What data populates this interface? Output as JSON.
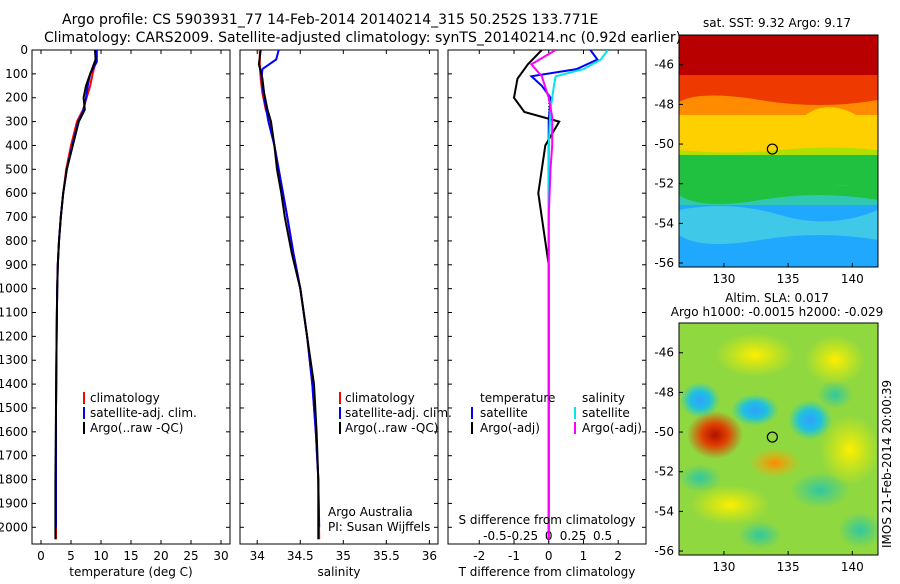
{
  "header": {
    "line1": "Argo profile: CS 5903931_77 14-Feb-2014 20140214_315 50.252S 133.771E",
    "line2": "Climatology: CARS2009. Satellite-adjusted climatology: synTS_20140214.nc (0.92d earlier)"
  },
  "side_text": "IMOS 21-Feb-2014 20:00:39",
  "colors": {
    "climatology": "#ff0000",
    "satellite": "#0000ff",
    "argo": "#000000",
    "s_satellite": "#00e5ee",
    "s_argo": "#ff00ff",
    "t_satellite": "#0000ff"
  },
  "chart_data": [
    {
      "type": "line",
      "id": "temperature",
      "xlabel": "temperature (deg C)",
      "ylabel": "",
      "xlim": [
        -1.5,
        31.5
      ],
      "ylim": [
        2070,
        0
      ],
      "xticks": [
        0,
        5,
        10,
        15,
        20,
        25,
        30
      ],
      "xtick_labels": [
        "0",
        "5",
        "10",
        "15",
        "20",
        "25",
        "30"
      ],
      "yticks": [
        0,
        100,
        200,
        300,
        400,
        500,
        600,
        700,
        800,
        900,
        1000,
        1100,
        1200,
        1300,
        1400,
        1500,
        1600,
        1700,
        1800,
        1900,
        2000
      ],
      "ytick_labels": [
        "0",
        "100",
        "200",
        "300",
        "400",
        "500",
        "600",
        "700",
        "800",
        "900",
        "1000",
        "1100",
        "1200",
        "1300",
        "1400",
        "1500",
        "1600",
        "1700",
        "1800",
        "1900",
        "2000"
      ],
      "legend": [
        "climatology",
        "satellite-adj. clim.",
        "Argo(..raw -QC)"
      ],
      "legend_placement": "lower-center",
      "series": [
        {
          "name": "climatology",
          "color": "#ff0000",
          "x": [
            9.2,
            9.1,
            8.6,
            8.2,
            7.6,
            7.0,
            6.0,
            5.0,
            4.2,
            3.7,
            3.3,
            3.0,
            2.8,
            2.7,
            2.6,
            2.5,
            2.5,
            2.5
          ],
          "y": [
            0,
            50,
            100,
            150,
            200,
            250,
            300,
            400,
            500,
            600,
            700,
            800,
            900,
            1000,
            1200,
            1500,
            1800,
            2050
          ]
        },
        {
          "name": "satellite-adj. clim.",
          "color": "#0000ff",
          "x": [
            9.3,
            9.3,
            8.2,
            7.8,
            7.5,
            7.1,
            6.2,
            5.2,
            4.3,
            3.7,
            3.3,
            3.0,
            2.8,
            2.7,
            2.6,
            2.5,
            2.5,
            2.5
          ],
          "y": [
            0,
            50,
            100,
            150,
            200,
            250,
            300,
            400,
            500,
            600,
            700,
            800,
            900,
            1000,
            1200,
            1500,
            1800,
            2000
          ]
        },
        {
          "name": "Argo(..raw -QC)",
          "color": "#000000",
          "x": [
            9.0,
            9.1,
            8.2,
            7.5,
            7.1,
            7.3,
            6.3,
            5.3,
            4.3,
            3.7,
            3.3,
            3.0,
            2.8,
            2.7,
            2.6,
            2.5,
            2.4,
            2.4
          ],
          "y": [
            0,
            40,
            100,
            150,
            200,
            250,
            300,
            400,
            500,
            600,
            700,
            800,
            900,
            1000,
            1200,
            1500,
            1800,
            2050
          ]
        }
      ]
    },
    {
      "type": "line",
      "id": "salinity",
      "xlabel": "salinity",
      "ylabel": "",
      "xlim": [
        33.8,
        36.1
      ],
      "ylim": [
        2070,
        0
      ],
      "xticks": [
        34,
        34.5,
        35,
        35.5,
        36
      ],
      "xtick_labels": [
        "34",
        "34.5",
        "35",
        "35.5",
        "36"
      ],
      "legend": [
        "climatology",
        "satellite-adj. clim.",
        "Argo(..raw -QC)"
      ],
      "legend_placement": "lower-right",
      "annotations": [
        "Argo Australia",
        "PI: Susan Wijffels"
      ],
      "series": [
        {
          "name": "climatology",
          "color": "#ff0000",
          "x": [
            34.03,
            34.03,
            34.04,
            34.06,
            34.1,
            34.15,
            34.2,
            34.25,
            34.3,
            34.35,
            34.42,
            34.5,
            34.58,
            34.64,
            34.68,
            34.71,
            34.72
          ],
          "y": [
            0,
            60,
            120,
            180,
            250,
            300,
            400,
            500,
            600,
            700,
            850,
            1000,
            1200,
            1400,
            1600,
            1800,
            2050
          ]
        },
        {
          "name": "satellite-adj. clim.",
          "color": "#0000ff",
          "x": [
            34.25,
            34.22,
            34.06,
            34.05,
            34.08,
            34.13,
            34.2,
            34.25,
            34.3,
            34.35,
            34.42,
            34.5,
            34.58,
            34.64,
            34.68,
            34.71,
            34.72
          ],
          "y": [
            0,
            40,
            80,
            120,
            200,
            300,
            400,
            500,
            600,
            700,
            850,
            1000,
            1200,
            1400,
            1600,
            1800,
            2000
          ]
        },
        {
          "name": "Argo(..raw -QC)",
          "color": "#000000",
          "x": [
            34.04,
            34.02,
            34.06,
            34.08,
            34.12,
            34.16,
            34.2,
            34.23,
            34.28,
            34.32,
            34.4,
            34.5,
            34.58,
            34.66,
            34.69,
            34.71,
            34.71
          ],
          "y": [
            0,
            60,
            120,
            180,
            250,
            300,
            400,
            500,
            600,
            700,
            850,
            1000,
            1200,
            1400,
            1600,
            1800,
            2050
          ]
        }
      ]
    },
    {
      "type": "line",
      "id": "difference",
      "xlabel": "T difference from climatology",
      "xlabel_top": "S difference from climatology",
      "xlim": [
        -2.9,
        2.8
      ],
      "ylim": [
        2070,
        0
      ],
      "xticks": [
        -2,
        -1,
        0,
        1,
        2
      ],
      "xtick_labels": [
        "-2",
        "-1",
        "0",
        "1",
        "2"
      ],
      "sticks_labels": [
        "-0.5",
        "-0.25",
        "0",
        "0.25",
        "0.5"
      ],
      "legend_temperature": [
        "temperature",
        "satellite",
        "Argo(-adj)"
      ],
      "legend_salinity": [
        "salinity",
        "satellite",
        "Argo(-adj)"
      ],
      "legend_placement": "lower-center",
      "series": [
        {
          "name": "satellite",
          "group": "temperature",
          "color": "#0000ff",
          "x": [
            1.2,
            1.4,
            0.8,
            -0.5,
            -0.2,
            0.05,
            0.0,
            0.0,
            0.0,
            0.0
          ],
          "y": [
            0,
            40,
            80,
            110,
            150,
            200,
            300,
            800,
            1400,
            2050
          ]
        },
        {
          "name": "Argo(-adj)",
          "group": "temperature",
          "color": "#000000",
          "x": [
            -0.2,
            -0.6,
            -0.9,
            -1.0,
            -0.7,
            0.3,
            -0.1,
            -0.3,
            0.0,
            0.0
          ],
          "y": [
            0,
            60,
            120,
            200,
            260,
            300,
            400,
            600,
            900,
            2050
          ]
        },
        {
          "name": "satellite",
          "group": "salinity",
          "color": "#00e5ee",
          "x": [
            1.7,
            1.5,
            1.0,
            0.2,
            0.15,
            0.05,
            0.0,
            0.0,
            0.0,
            0.0
          ],
          "y": [
            0,
            40,
            80,
            110,
            150,
            250,
            400,
            800,
            1400,
            2050
          ]
        },
        {
          "name": "Argo(-adj)",
          "group": "salinity",
          "color": "#ff00ff",
          "x": [
            0.2,
            -0.5,
            -0.2,
            0.0,
            0.1,
            0.1,
            0.05,
            0.0,
            0.0,
            0.0
          ],
          "y": [
            0,
            60,
            110,
            200,
            280,
            400,
            500,
            700,
            900,
            2050
          ]
        }
      ]
    },
    {
      "type": "heatmap",
      "id": "sst_map",
      "title": "sat. SST: 9.32 Argo: 9.17",
      "xlim": [
        126.5,
        142
      ],
      "ylim": [
        -56.2,
        -44.5
      ],
      "xticks": [
        130,
        135,
        140
      ],
      "xtick_labels": [
        "130",
        "135",
        "140"
      ],
      "yticks": [
        -46,
        -48,
        -50,
        -52,
        -54,
        -56
      ],
      "ytick_labels": [
        "-46",
        "-48",
        "-50",
        "-52",
        "-54",
        "-56"
      ],
      "marker": {
        "x": 133.771,
        "y": -50.252
      }
    },
    {
      "type": "heatmap",
      "id": "sla_map",
      "title": "Altim. SLA: 0.017",
      "subtitle": "Argo h1000: -0.0015 h2000: -0.029",
      "xlim": [
        126.5,
        142
      ],
      "ylim": [
        -56.2,
        -44.5
      ],
      "xticks": [
        130,
        135,
        140
      ],
      "xtick_labels": [
        "130",
        "135",
        "140"
      ],
      "yticks": [
        -46,
        -48,
        -50,
        -52,
        -54,
        -56
      ],
      "ytick_labels": [
        "-46",
        "-48",
        "-50",
        "-52",
        "-54",
        "-56"
      ],
      "marker": {
        "x": 133.771,
        "y": -50.252
      }
    }
  ]
}
